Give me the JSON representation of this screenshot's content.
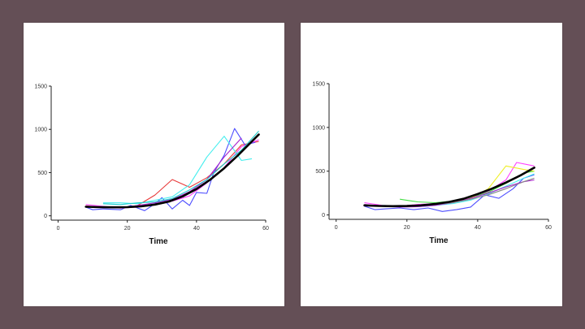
{
  "colors": {
    "background": "#644f56",
    "panel": "#ffffff",
    "axis": "#222222",
    "fit": "#000000"
  },
  "chart_data": [
    {
      "type": "line",
      "xlabel": "Time",
      "ylabel": "",
      "xlim": [
        -2,
        60
      ],
      "ylim": [
        -50,
        1500
      ],
      "xticks": [
        0,
        20,
        40,
        60
      ],
      "yticks": [
        0,
        500,
        1000,
        1500
      ],
      "grid": false,
      "series": [
        {
          "color": "#e83a3a",
          "x": [
            8,
            13,
            18,
            23,
            28,
            33,
            38,
            43,
            48,
            53,
            58
          ],
          "y": [
            115,
            95,
            90,
            120,
            240,
            420,
            330,
            440,
            600,
            820,
            860
          ]
        },
        {
          "color": "#4d4dff",
          "x": [
            8,
            10,
            13,
            18,
            21,
            25,
            28,
            30,
            33,
            36,
            38,
            40,
            43,
            45,
            48,
            51,
            54,
            57
          ],
          "y": [
            100,
            70,
            80,
            70,
            120,
            60,
            140,
            210,
            80,
            180,
            120,
            270,
            260,
            500,
            700,
            1010,
            820,
            850
          ]
        },
        {
          "color": "#ff3dff",
          "x": [
            8,
            13,
            18,
            23,
            28,
            33,
            38,
            43,
            48,
            53,
            58
          ],
          "y": [
            130,
            110,
            90,
            100,
            130,
            170,
            230,
            380,
            560,
            800,
            880
          ]
        },
        {
          "color": "#44eeee",
          "x": [
            13,
            18,
            23,
            28,
            33,
            38,
            43,
            48,
            53,
            56
          ],
          "y": [
            150,
            150,
            140,
            180,
            220,
            360,
            680,
            920,
            640,
            660
          ]
        },
        {
          "color": "#aa22cc",
          "x": [
            8,
            13,
            18,
            23,
            28,
            33,
            38,
            43,
            48,
            53
          ],
          "y": [
            110,
            100,
            90,
            120,
            150,
            190,
            280,
            420,
            680,
            900
          ]
        },
        {
          "color": "#22cccc",
          "x": [
            13,
            18,
            23,
            28,
            33,
            38,
            43,
            48,
            53,
            58
          ],
          "y": [
            140,
            130,
            150,
            160,
            200,
            300,
            420,
            600,
            760,
            980
          ]
        }
      ],
      "fit": {
        "color": "#000000",
        "x": [
          8,
          12,
          16,
          20,
          24,
          28,
          32,
          36,
          40,
          44,
          48,
          52,
          56,
          58
        ],
        "y": [
          105,
          100,
          98,
          100,
          110,
          130,
          165,
          225,
          310,
          420,
          550,
          700,
          860,
          940
        ]
      }
    },
    {
      "type": "line",
      "xlabel": "Time",
      "ylabel": "",
      "xlim": [
        -2,
        60
      ],
      "ylim": [
        -50,
        1500
      ],
      "xticks": [
        0,
        20,
        40,
        60
      ],
      "yticks": [
        0,
        500,
        1000,
        1500
      ],
      "grid": false,
      "series": [
        {
          "color": "#4d4dff",
          "x": [
            8,
            11,
            14,
            18,
            22,
            26,
            30,
            34,
            38,
            42,
            46,
            50,
            53,
            56
          ],
          "y": [
            100,
            60,
            70,
            80,
            60,
            80,
            40,
            60,
            90,
            230,
            190,
            300,
            420,
            460
          ]
        },
        {
          "color": "#ff3dff",
          "x": [
            8,
            13,
            18,
            23,
            28,
            33,
            38,
            43,
            48,
            51,
            56
          ],
          "y": [
            140,
            110,
            100,
            120,
            130,
            160,
            210,
            270,
            400,
            600,
            560
          ]
        },
        {
          "color": "#44dd44",
          "x": [
            18,
            23,
            28,
            33,
            38,
            43,
            48,
            53,
            56
          ],
          "y": [
            180,
            150,
            140,
            160,
            200,
            260,
            360,
            480,
            500
          ]
        },
        {
          "color": "#eeee22",
          "x": [
            28,
            33,
            38,
            43,
            48,
            53,
            56
          ],
          "y": [
            130,
            150,
            190,
            300,
            560,
            520,
            500
          ]
        },
        {
          "color": "#44eeee",
          "x": [
            13,
            18,
            23,
            28,
            33,
            38,
            43,
            48,
            53,
            56
          ],
          "y": [
            110,
            100,
            95,
            110,
            130,
            170,
            240,
            330,
            420,
            470
          ]
        },
        {
          "color": "#aa22cc",
          "x": [
            8,
            13,
            18,
            23,
            28,
            33,
            38,
            43,
            48,
            53,
            56
          ],
          "y": [
            120,
            100,
            90,
            95,
            110,
            140,
            190,
            250,
            320,
            380,
            400
          ]
        },
        {
          "color": "#888888",
          "x": [
            23,
            28,
            33,
            38,
            43,
            48,
            53,
            56
          ],
          "y": [
            110,
            120,
            140,
            180,
            230,
            300,
            380,
            420
          ]
        }
      ],
      "fit": {
        "color": "#000000",
        "x": [
          8,
          12,
          16,
          20,
          24,
          28,
          32,
          36,
          40,
          44,
          48,
          52,
          56
        ],
        "y": [
          110,
          103,
          100,
          102,
          110,
          125,
          150,
          185,
          240,
          300,
          370,
          450,
          540
        ]
      }
    }
  ]
}
